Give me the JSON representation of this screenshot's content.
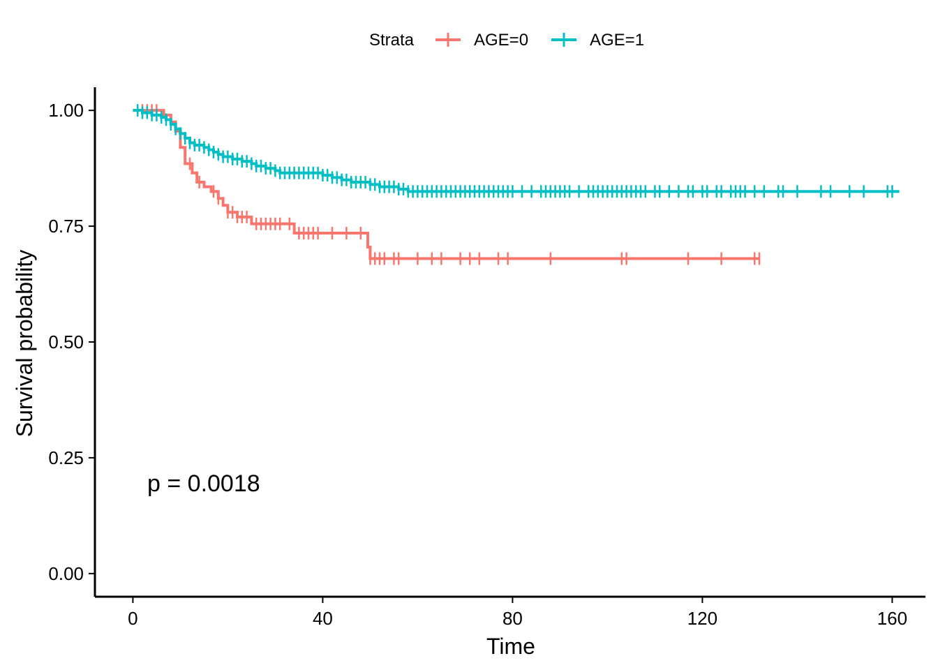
{
  "chart_data": {
    "type": "line",
    "subtype": "kaplan-meier step",
    "xlabel": "Time",
    "ylabel": "Survival probability",
    "xlim": [
      -8,
      167
    ],
    "ylim": [
      -0.05,
      1.05
    ],
    "x_ticks": [
      0,
      40,
      80,
      120,
      160
    ],
    "x_tick_labels": [
      "0",
      "40",
      "80",
      "120",
      "160"
    ],
    "y_ticks": [
      0.0,
      0.25,
      0.5,
      0.75,
      1.0
    ],
    "y_tick_labels": [
      "0.00",
      "0.25",
      "0.50",
      "0.75",
      "1.00"
    ],
    "grid": false,
    "legend": {
      "title": "Strata",
      "placement": "top",
      "entries": [
        "AGE=0",
        "AGE=1"
      ]
    },
    "annotation": "p = 0.0018",
    "series": [
      {
        "name": "AGE=0",
        "color": "#F8766D",
        "steps": [
          [
            0,
            1.0
          ],
          [
            6.5,
            0.99
          ],
          [
            8,
            0.975
          ],
          [
            9,
            0.955
          ],
          [
            10,
            0.92
          ],
          [
            11,
            0.885
          ],
          [
            12.5,
            0.865
          ],
          [
            13.5,
            0.845
          ],
          [
            15,
            0.835
          ],
          [
            16.5,
            0.825
          ],
          [
            18,
            0.81
          ],
          [
            19,
            0.795
          ],
          [
            20,
            0.78
          ],
          [
            22,
            0.77
          ],
          [
            25,
            0.755
          ],
          [
            34,
            0.735
          ],
          [
            49.5,
            0.705
          ],
          [
            50,
            0.68
          ],
          [
            132,
            0.68
          ]
        ],
        "censor_times": [
          2,
          3,
          4,
          5,
          8,
          12,
          14,
          17,
          18,
          20,
          21,
          22,
          23,
          24,
          26,
          27,
          28,
          29,
          30,
          31,
          33,
          35,
          36,
          37,
          38,
          39,
          42,
          45,
          48,
          50,
          51,
          52,
          53,
          55,
          56,
          60,
          63,
          65,
          69,
          71,
          73,
          77,
          79,
          88,
          103,
          104,
          117,
          124,
          131,
          132
        ]
      },
      {
        "name": "AGE=1",
        "color": "#00BFC4",
        "steps": [
          [
            0,
            1.0
          ],
          [
            2,
            0.995
          ],
          [
            4,
            0.99
          ],
          [
            6,
            0.985
          ],
          [
            7,
            0.98
          ],
          [
            8,
            0.97
          ],
          [
            9,
            0.96
          ],
          [
            10,
            0.95
          ],
          [
            11,
            0.94
          ],
          [
            12,
            0.93
          ],
          [
            13,
            0.925
          ],
          [
            15,
            0.92
          ],
          [
            16,
            0.915
          ],
          [
            17,
            0.91
          ],
          [
            18,
            0.905
          ],
          [
            19,
            0.9
          ],
          [
            21,
            0.895
          ],
          [
            23,
            0.89
          ],
          [
            25,
            0.885
          ],
          [
            26,
            0.88
          ],
          [
            28,
            0.875
          ],
          [
            30,
            0.87
          ],
          [
            31,
            0.865
          ],
          [
            40,
            0.86
          ],
          [
            42,
            0.855
          ],
          [
            44,
            0.85
          ],
          [
            46,
            0.845
          ],
          [
            50,
            0.84
          ],
          [
            52,
            0.835
          ],
          [
            56,
            0.83
          ],
          [
            58,
            0.825
          ],
          [
            161.5,
            0.825
          ]
        ],
        "censor_times": [
          1,
          2,
          3,
          4,
          5,
          6,
          7,
          8,
          9,
          10,
          11,
          12,
          13,
          14,
          15,
          16,
          17,
          18,
          19,
          20,
          21,
          22,
          23,
          24,
          25,
          26,
          27,
          28,
          29,
          30,
          31,
          32,
          33,
          34,
          35,
          36,
          37,
          38,
          39,
          40,
          41,
          42,
          43,
          44,
          45,
          46,
          47,
          48,
          49,
          50,
          51,
          52,
          53,
          54,
          55,
          56,
          57,
          58,
          59,
          60,
          61,
          62,
          63,
          64,
          65,
          66,
          67,
          68,
          69,
          70,
          71,
          72,
          73,
          74,
          75,
          76,
          77,
          78,
          79,
          80,
          82,
          84,
          86,
          87,
          88,
          89,
          90,
          91,
          92,
          94,
          96,
          97,
          98,
          99,
          100,
          101,
          102,
          103,
          104,
          105,
          106,
          107,
          108,
          110,
          111,
          113,
          115,
          117,
          118,
          120,
          121,
          123,
          124,
          126,
          127,
          128,
          129,
          131,
          133,
          136,
          137,
          140,
          145,
          147,
          151,
          154,
          159,
          160
        ]
      }
    ]
  }
}
